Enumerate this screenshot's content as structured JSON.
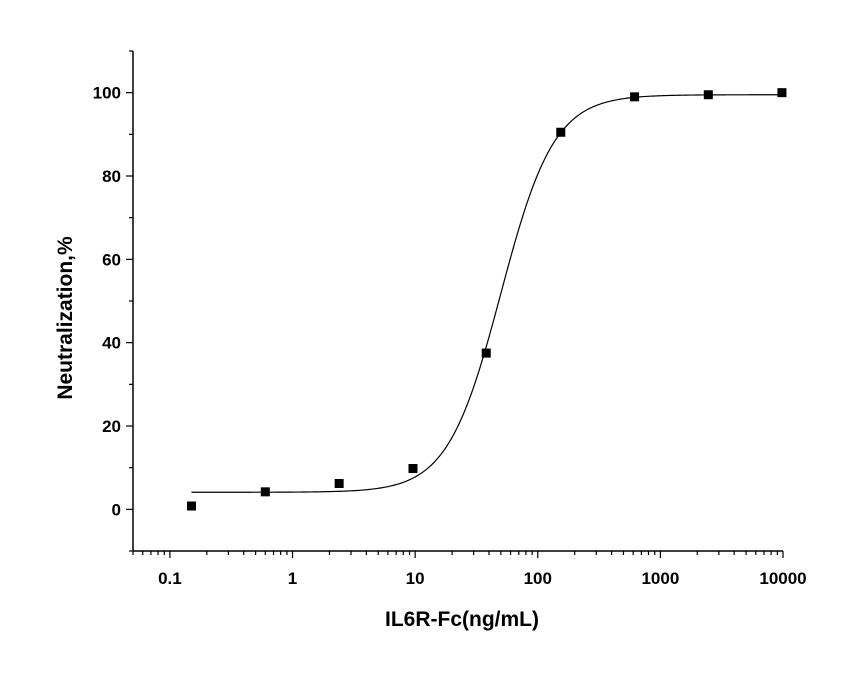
{
  "chart_data": {
    "type": "scatter",
    "title": "",
    "xlabel": "IL6R-Fc(ng/mL)",
    "ylabel": "Neutralization,%",
    "x_scale": "log",
    "xlim": [
      0.05,
      10000
    ],
    "ylim": [
      -10,
      110
    ],
    "grid": false,
    "legend": "none",
    "x_ticks": [
      0.1,
      1,
      10,
      100,
      1000,
      10000
    ],
    "x_tick_labels": [
      "0.1",
      "1",
      "10",
      "100",
      "1000",
      "10000"
    ],
    "y_ticks": [
      0,
      20,
      40,
      60,
      80,
      100
    ],
    "y_tick_labels": [
      "0",
      "20",
      "40",
      "60",
      "80",
      "100"
    ],
    "series": [
      {
        "marker": "square",
        "color": "#000000",
        "x": [
          0.15,
          0.6,
          2.4,
          9.6,
          38,
          154,
          616,
          2460,
          9800
        ],
        "y": [
          0.8,
          4.2,
          6.2,
          9.8,
          37.5,
          90.5,
          99,
          99.5,
          100
        ]
      }
    ],
    "fit_curve": {
      "model": "4PL",
      "color": "#000000",
      "bottom": 4.1,
      "top": 99.5,
      "ec50": 50,
      "hill": 2.0,
      "x_range": [
        0.15,
        9800
      ]
    }
  }
}
